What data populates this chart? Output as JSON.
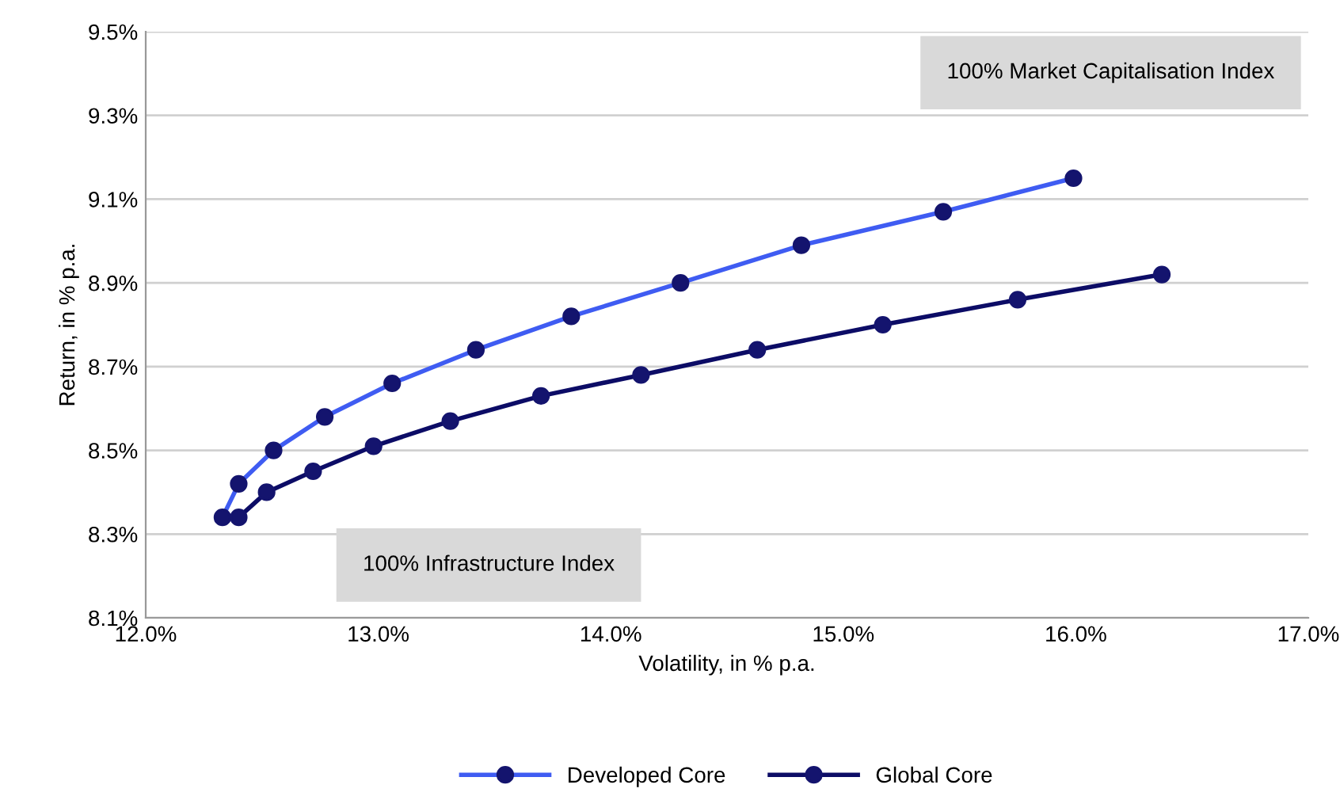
{
  "chart_data": {
    "type": "line",
    "xlabel": "Volatility, in % p.a.",
    "ylabel": "Return, in % p.a.",
    "xlim": [
      12.0,
      17.0
    ],
    "ylim": [
      8.1,
      9.5
    ],
    "xticks": [
      {
        "value": 12.0,
        "label": "12.0%"
      },
      {
        "value": 13.0,
        "label": "13.0%"
      },
      {
        "value": 14.0,
        "label": "14.0%"
      },
      {
        "value": 15.0,
        "label": "15.0%"
      },
      {
        "value": 16.0,
        "label": "16.0%"
      },
      {
        "value": 17.0,
        "label": "17.0%"
      }
    ],
    "yticks": [
      {
        "value": 8.1,
        "label": "8.1%"
      },
      {
        "value": 8.3,
        "label": "8.3%"
      },
      {
        "value": 8.5,
        "label": "8.5%"
      },
      {
        "value": 8.7,
        "label": "8.7%"
      },
      {
        "value": 8.9,
        "label": "8.9%"
      },
      {
        "value": 9.1,
        "label": "9.1%"
      },
      {
        "value": 9.3,
        "label": "9.3%"
      },
      {
        "value": 9.5,
        "label": "9.5%"
      }
    ],
    "grid": "y",
    "legend": "bottom",
    "marker": "circle",
    "line_style": "solid",
    "series": [
      {
        "name": "Developed Core",
        "color": "#3f5cf2",
        "x": [
          12.33,
          12.4,
          12.55,
          12.77,
          13.06,
          13.42,
          13.83,
          14.3,
          14.82,
          15.43,
          15.99
        ],
        "values": [
          8.34,
          8.42,
          8.5,
          8.58,
          8.66,
          8.74,
          8.82,
          8.9,
          8.99,
          9.07,
          9.15
        ]
      },
      {
        "name": "Global Core",
        "color": "#0c0c66",
        "x": [
          12.4,
          12.52,
          12.72,
          12.98,
          13.31,
          13.7,
          14.13,
          14.63,
          15.17,
          15.75,
          16.37
        ],
        "values": [
          8.34,
          8.4,
          8.45,
          8.51,
          8.57,
          8.63,
          8.68,
          8.74,
          8.8,
          8.86,
          8.92
        ]
      }
    ],
    "annotations": [
      "100% Market Capitalisation Index",
      "100% Infrastructure Index"
    ]
  }
}
